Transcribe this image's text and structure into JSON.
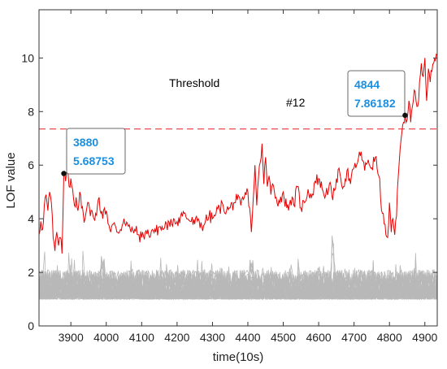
{
  "colors": {
    "target": "#e60000",
    "others": "#b8b8b8",
    "threshold": "#e8383d",
    "tooltip_text": "#1a8fe0",
    "axis": "#333333"
  },
  "chart_data": {
    "type": "line",
    "title": "",
    "xlabel": "time(10s)",
    "ylabel": "LOF value",
    "xlim": [
      3810,
      4935
    ],
    "ylim": [
      0,
      11.8
    ],
    "xticks": [
      3900,
      4000,
      4100,
      4200,
      4300,
      4400,
      4500,
      4600,
      4700,
      4800,
      4900
    ],
    "yticks": [
      0,
      2,
      4,
      6,
      8,
      10
    ],
    "grid": false,
    "threshold": {
      "label": "Threshold",
      "value": 7.35,
      "style": "dashed"
    },
    "annotations": [
      {
        "text": "#12",
        "x": 4545,
        "y": 8.75
      }
    ],
    "highlight_points": [
      {
        "x": 3880,
        "y": 5.68753,
        "x_label": "3880",
        "y_label": "5.68753"
      },
      {
        "x": 4844,
        "y": 7.86182,
        "x_label": "4844",
        "y_label": "7.86182"
      }
    ],
    "series": [
      {
        "role": "target",
        "x": [
          3810,
          3815,
          3820,
          3825,
          3830,
          3835,
          3840,
          3845,
          3850,
          3855,
          3860,
          3865,
          3870,
          3875,
          3880,
          3885,
          3890,
          3895,
          3900,
          3905,
          3910,
          3915,
          3920,
          3925,
          3930,
          3935,
          3940,
          3945,
          3950,
          3955,
          3960,
          3965,
          3970,
          3975,
          3980,
          3985,
          3990,
          3995,
          4000,
          4010,
          4020,
          4030,
          4040,
          4050,
          4060,
          4070,
          4080,
          4090,
          4100,
          4110,
          4120,
          4130,
          4140,
          4150,
          4160,
          4170,
          4180,
          4190,
          4200,
          4210,
          4220,
          4230,
          4240,
          4250,
          4260,
          4270,
          4280,
          4290,
          4300,
          4310,
          4320,
          4330,
          4340,
          4350,
          4360,
          4370,
          4380,
          4390,
          4400,
          4405,
          4410,
          4415,
          4420,
          4425,
          4430,
          4435,
          4440,
          4445,
          4450,
          4455,
          4460,
          4465,
          4470,
          4480,
          4490,
          4500,
          4510,
          4520,
          4530,
          4540,
          4550,
          4560,
          4570,
          4580,
          4590,
          4600,
          4610,
          4620,
          4630,
          4640,
          4650,
          4660,
          4670,
          4680,
          4690,
          4700,
          4710,
          4720,
          4730,
          4740,
          4750,
          4760,
          4770,
          4780,
          4785,
          4790,
          4795,
          4800,
          4805,
          4810,
          4815,
          4820,
          4825,
          4830,
          4835,
          4840,
          4844,
          4850,
          4855,
          4860,
          4865,
          4870,
          4875,
          4880,
          4885,
          4890,
          4895,
          4900,
          4905,
          4910,
          4915,
          4920,
          4925,
          4930,
          4935
        ],
        "y": [
          3.4,
          3.9,
          3.6,
          4.5,
          4.9,
          4.3,
          5.0,
          4.6,
          3.3,
          2.8,
          3.5,
          3.0,
          3.3,
          2.7,
          5.68753,
          5.4,
          6.0,
          5.2,
          5.5,
          5.1,
          4.5,
          4.8,
          4.3,
          5.0,
          4.4,
          4.2,
          4.0,
          4.4,
          4.6,
          4.1,
          4.3,
          4.0,
          4.2,
          4.5,
          4.8,
          4.2,
          4.0,
          4.4,
          4.3,
          3.6,
          3.8,
          3.5,
          3.6,
          4.0,
          3.8,
          3.5,
          3.6,
          3.4,
          3.3,
          3.5,
          3.4,
          3.6,
          3.5,
          3.7,
          3.6,
          3.8,
          3.7,
          4.0,
          3.9,
          4.1,
          4.2,
          4.0,
          3.9,
          3.8,
          4.0,
          3.7,
          3.9,
          4.1,
          4.0,
          4.2,
          4.4,
          4.5,
          4.3,
          4.4,
          4.6,
          4.7,
          4.5,
          4.8,
          5.0,
          4.4,
          3.5,
          4.7,
          6.0,
          4.5,
          5.5,
          6.1,
          6.8,
          5.3,
          6.3,
          5.2,
          5.6,
          4.9,
          5.3,
          4.8,
          4.6,
          5.0,
          4.4,
          4.7,
          4.5,
          5.2,
          4.4,
          4.6,
          5.1,
          4.8,
          5.4,
          5.5,
          5.1,
          4.9,
          5.3,
          4.7,
          5.5,
          5.7,
          5.2,
          5.8,
          5.3,
          5.9,
          6.1,
          6.5,
          5.8,
          6.2,
          5.9,
          6.3,
          5.6,
          4.2,
          3.8,
          3.4,
          3.3,
          4.6,
          3.5,
          4.0,
          3.4,
          4.1,
          5.6,
          6.6,
          7.2,
          7.6,
          7.86182,
          7.7,
          8.4,
          7.6,
          8.2,
          8.8,
          8.4,
          8.2,
          9.1,
          9.8,
          9.3,
          10.0,
          8.4,
          9.6,
          9.1,
          9.5,
          9.8,
          9.9,
          10.1
        ]
      }
    ],
    "others_summary": {
      "series_count": 30,
      "baseline": 1.0,
      "typical_max": 2.2
    }
  }
}
